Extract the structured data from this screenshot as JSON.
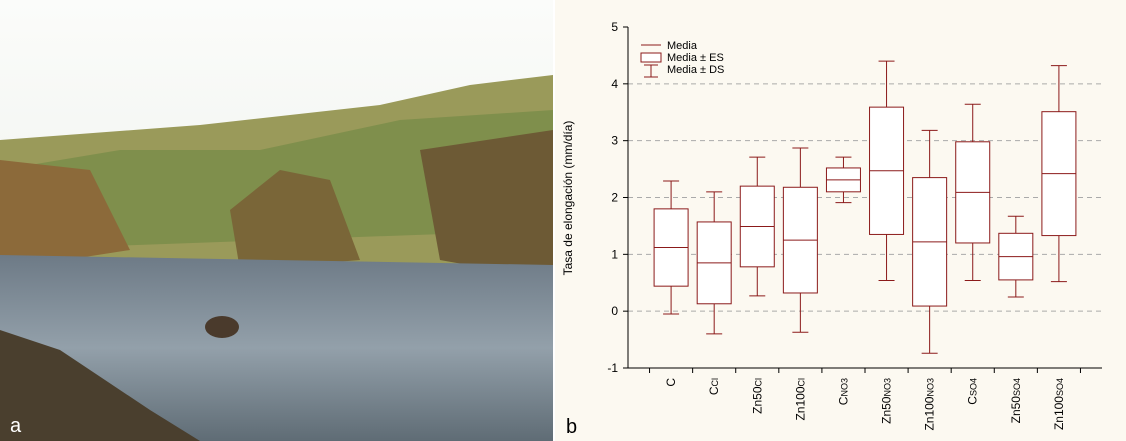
{
  "panel_labels": [
    "a",
    "b"
  ],
  "chart_data": {
    "type": "box",
    "y_label": "Tasa de elongación (mm/día)",
    "categories": [
      "C",
      "C",
      "Zn50",
      "Zn100",
      "C",
      "Zn50",
      "Zn100",
      "C",
      "Zn50",
      "Zn100"
    ],
    "category_subscripts": [
      null,
      "Cl",
      "Cl",
      "Cl",
      "NO3",
      "NO3",
      "NO3",
      "SO4",
      "SO4",
      "SO4"
    ],
    "mean": [
      1.12,
      0.85,
      1.49,
      1.25,
      2.31,
      2.47,
      1.22,
      2.09,
      0.96,
      2.42
    ],
    "se": [
      0.68,
      0.72,
      0.71,
      0.93,
      0.21,
      1.12,
      1.13,
      0.89,
      0.41,
      1.09
    ],
    "sd": [
      1.17,
      1.25,
      1.22,
      1.62,
      0.4,
      1.93,
      1.96,
      1.55,
      0.71,
      1.9
    ],
    "legend": [
      "Media",
      "Media ± ES",
      "Media ± DS"
    ],
    "color": "#8b1a1a",
    "ylim": [
      -1,
      5
    ],
    "yticks": [
      -1,
      0,
      1,
      2,
      3,
      4,
      5
    ],
    "grid": true
  }
}
